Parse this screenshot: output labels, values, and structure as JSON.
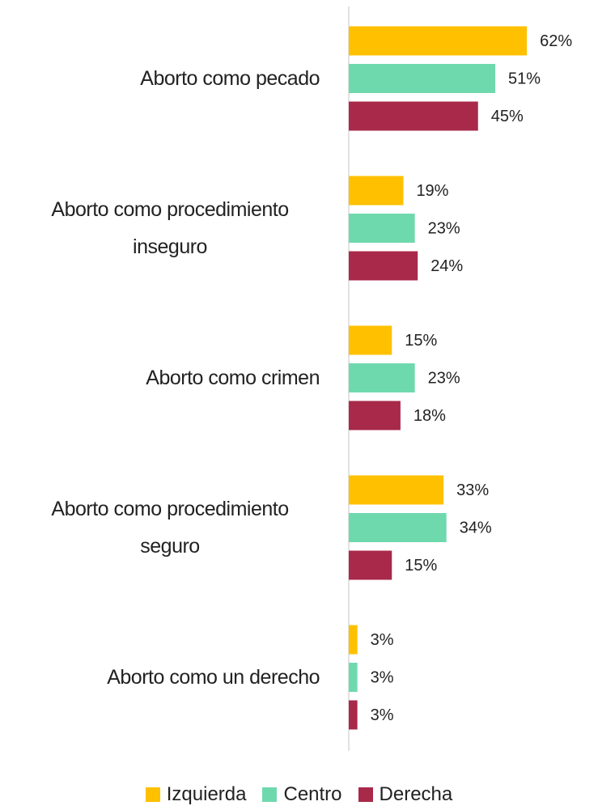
{
  "chart_data": {
    "type": "bar",
    "orientation": "horizontal",
    "categories": [
      "Aborto como pecado",
      "Aborto como procedimiento inseguro",
      "Aborto como crimen",
      "Aborto como procedimiento seguro",
      "Aborto como un derecho"
    ],
    "series": [
      {
        "name": "Izquierda",
        "color": "#FFC000",
        "values": [
          62,
          19,
          15,
          33,
          3
        ],
        "value_labels": [
          "62%",
          "19%",
          "15%",
          "33%",
          "3%"
        ]
      },
      {
        "name": "Centro",
        "color": "#6FD9AE",
        "values": [
          51,
          23,
          23,
          34,
          3
        ],
        "value_labels": [
          "51%",
          "23%",
          "23%",
          "34%",
          "3%"
        ]
      },
      {
        "name": "Derecha",
        "color": "#A8294A",
        "values": [
          45,
          24,
          18,
          15,
          3
        ],
        "value_labels": [
          "45%",
          "24%",
          "18%",
          "15%",
          "3%"
        ]
      }
    ],
    "legend": "bottom"
  }
}
